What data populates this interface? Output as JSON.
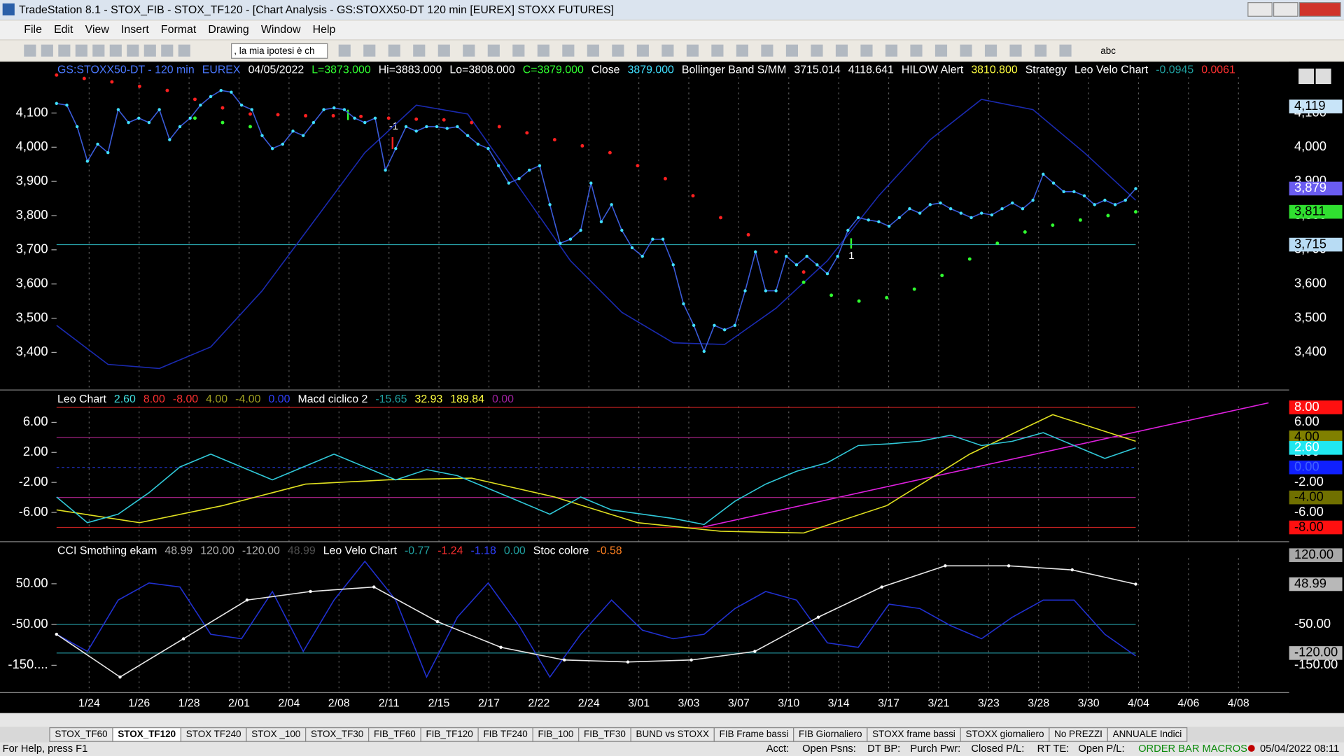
{
  "window": {
    "title": "TradeStation 8.1 - STOX_FIB - STOX_TF120 - [Chart Analysis - GS:STOXX50-DT  120 min  [EUREX] STOXX FUTURES]"
  },
  "menu": [
    "File",
    "Edit",
    "View",
    "Insert",
    "Format",
    "Drawing",
    "Window",
    "Help"
  ],
  "toolbar": {
    "combo": ", la mia ipotesi è ch",
    "text_tool": "abc"
  },
  "time_axis": [
    "1/24",
    "1/26",
    "1/28",
    "2/01",
    "2/04",
    "2/08",
    "2/11",
    "2/15",
    "2/17",
    "2/22",
    "2/24",
    "3/01",
    "3/03",
    "3/07",
    "3/10",
    "3/14",
    "3/17",
    "3/21",
    "3/23",
    "3/28",
    "3/30",
    "4/04",
    "4/06",
    "4/08"
  ],
  "chart_data": [
    {
      "type": "line",
      "header": [
        {
          "text": "GS:STOXX50-DT - 120 min",
          "color": "#4a78ff"
        },
        {
          "text": "EUREX",
          "color": "#4a78ff"
        },
        {
          "text": "04/05/2022",
          "color": "#ffffff"
        },
        {
          "text": "L=3873.000",
          "color": "#30ff30"
        },
        {
          "text": "Hi=3883.000",
          "color": "#ffffff"
        },
        {
          "text": "Lo=3808.000",
          "color": "#ffffff"
        },
        {
          "text": "C=3879.000",
          "color": "#30ff30"
        },
        {
          "text": "Close",
          "color": "#ffffff"
        },
        {
          "text": "3879.000",
          "color": "#40e0ff"
        },
        {
          "text": "Bollinger Band S/MM",
          "color": "#ffffff"
        },
        {
          "text": "3715.014",
          "color": "#ffffff"
        },
        {
          "text": "4118.641",
          "color": "#ffffff"
        },
        {
          "text": "HILOW Alert",
          "color": "#ffffff"
        },
        {
          "text": "3810.800",
          "color": "#ffff40"
        },
        {
          "text": "Strategy",
          "color": "#ffffff"
        },
        {
          "text": "Leo Velo Chart",
          "color": "#ffffff"
        },
        {
          "text": "-0.0945",
          "color": "#20a0a0"
        },
        {
          "text": "0.0061",
          "color": "#ff3030"
        }
      ],
      "ylim": [
        3290,
        4250
      ],
      "yticks": [
        {
          "value": 3400,
          "label": "3,400"
        },
        {
          "value": 3500,
          "label": "3,500"
        },
        {
          "value": 3600,
          "label": "3,600"
        },
        {
          "value": 3700,
          "label": "3,700"
        },
        {
          "value": 3800,
          "label": "3,800"
        },
        {
          "value": 3900,
          "label": "3,900"
        },
        {
          "value": 4000,
          "label": "4,000"
        },
        {
          "value": 4100,
          "label": "4,100"
        }
      ],
      "hlines": [
        {
          "value": 3715,
          "color": "#2aa8b0"
        }
      ],
      "series": [
        {
          "style": "line",
          "color": "#1a2ab0",
          "values": [
            3479,
            3365,
            3353,
            3416,
            3580,
            3782,
            3984,
            4123,
            4097,
            3883,
            3668,
            3517,
            3428,
            3423,
            3529,
            3668,
            3858,
            4022,
            4140,
            4110,
            3984,
            3845
          ]
        },
        {
          "style": "dots",
          "color": "#ff2020",
          "values": [
            4211,
            4201,
            4191,
            4178,
            4166,
            4140,
            4115,
            4097,
            4095,
            4092,
            4092,
            4090,
            4085,
            4082,
            4080,
            4072,
            4060,
            4042,
            4022,
            4004,
            3984,
            3946,
            3908,
            3858,
            3794,
            3744,
            3694,
            3635,
            null,
            null,
            null,
            null,
            null,
            null,
            null,
            null,
            null,
            null,
            null,
            null
          ]
        },
        {
          "style": "dots",
          "color": "#30ff30",
          "values": [
            null,
            null,
            null,
            null,
            null,
            4085,
            4072,
            4060,
            null,
            null,
            null,
            null,
            null,
            null,
            null,
            null,
            null,
            null,
            null,
            null,
            null,
            null,
            null,
            null,
            null,
            null,
            null,
            3605,
            3567,
            3550,
            3560,
            3585,
            3625,
            3673,
            3719,
            3752,
            3772,
            3787,
            3800,
            3811
          ]
        },
        {
          "style": "line_dots",
          "color": "#3a5bd9",
          "dot_color": "#40e0ff",
          "values": [
            4128,
            4123,
            4060,
            3959,
            4009,
            3984,
            4110,
            4072,
            4085,
            4072,
            4110,
            4022,
            4060,
            4085,
            4123,
            4148,
            4166,
            4161,
            4123,
            4110,
            4034,
            3996,
            4009,
            4047,
            4034,
            4072,
            4110,
            4115,
            4110,
            4085,
            4072,
            4085,
            3933,
            3996,
            4060,
            4047,
            4060,
            4060,
            4055,
            4060,
            4034,
            4009,
            3996,
            3946,
            3895,
            3908,
            3933,
            3946,
            3832,
            3719,
            3731,
            3757,
            3895,
            3782,
            3832,
            3757,
            3706,
            3681,
            3731,
            3731,
            3656,
            3542,
            3479,
            3403,
            3479,
            3466,
            3479,
            3580,
            3694,
            3580,
            3580,
            3681,
            3656,
            3681,
            3656,
            3630,
            3681,
            3757,
            3794,
            3787,
            3782,
            3769,
            3794,
            3820,
            3807,
            3832,
            3837,
            3820,
            3807,
            3794,
            3807,
            3802,
            3820,
            3837,
            3820,
            3845,
            3921,
            3895,
            3870,
            3870,
            3858,
            3832,
            3845,
            3832,
            3845,
            3879
          ]
        }
      ],
      "markers": [
        {
          "value": 4119,
          "label": "4,119",
          "color": "#c8e4f8",
          "text_color": "#000000"
        },
        {
          "value": 3879,
          "label": "3,879",
          "color": "#6a5cf0",
          "text_color": "#ffffff"
        },
        {
          "value": 3811,
          "label": "3,811",
          "color": "#30e030",
          "text_color": "#000000"
        },
        {
          "value": 3715,
          "label": "3,715",
          "color": "#b8dcf4",
          "text_color": "#000000"
        }
      ],
      "annotations": [
        "-1",
        "1"
      ]
    },
    {
      "type": "line",
      "header": [
        {
          "text": "Leo Chart",
          "color": "#ffffff"
        },
        {
          "text": "2.60",
          "color": "#40e0e0"
        },
        {
          "text": "8.00",
          "color": "#ff3030"
        },
        {
          "text": "-8.00",
          "color": "#ff3030"
        },
        {
          "text": "4.00",
          "color": "#a0a020"
        },
        {
          "text": "-4.00",
          "color": "#a0a020"
        },
        {
          "text": "0.00",
          "color": "#3040ff"
        },
        {
          "text": "Macd ciclico 2",
          "color": "#ffffff"
        },
        {
          "text": "-15.65",
          "color": "#20a0a0"
        },
        {
          "text": "32.93",
          "color": "#ffff40"
        },
        {
          "text": "189.84",
          "color": "#ffff40"
        },
        {
          "text": "0.00",
          "color": "#a020a0"
        }
      ],
      "ylim": [
        -9.9,
        10.2
      ],
      "yticks": [
        {
          "value": -6,
          "label": "-6.00"
        },
        {
          "value": -2,
          "label": "-2.00"
        },
        {
          "value": 2,
          "label": "2.00"
        },
        {
          "value": 6,
          "label": "6.00"
        }
      ],
      "hlines": [
        {
          "value": 8,
          "color": "#c02020"
        },
        {
          "value": 4,
          "color": "#a02080"
        },
        {
          "value": 0,
          "color": "#2030c0"
        },
        {
          "value": -4,
          "color": "#a02080"
        },
        {
          "value": -8,
          "color": "#c02020"
        }
      ],
      "series": [
        {
          "style": "line",
          "color": "#e0e020",
          "values": [
            -5.66,
            -7.37,
            -5.09,
            -2.23,
            -1.66,
            -1.43,
            -3.94,
            -7.37,
            -8.51,
            -8.74,
            -5.09,
            1.77,
            7.03,
            3.49
          ]
        },
        {
          "style": "line",
          "color": "#30c8d8",
          "values": [
            -3.94,
            -7.37,
            -6.23,
            -3.37,
            0.06,
            1.77,
            0.06,
            -1.66,
            0.06,
            1.77,
            0.06,
            -1.66,
            -0.29,
            -1.09,
            -2.8,
            -4.51,
            -6.23,
            -3.94,
            -5.66,
            -6.23,
            -6.8,
            -7.6,
            -4.51,
            -2.23,
            -0.51,
            0.63,
            2.91,
            3.14,
            3.49,
            4.29,
            2.91,
            3.49,
            4.63,
            2.91,
            1.2,
            2.6
          ]
        }
      ],
      "markers": [
        {
          "value": 8,
          "label": "8.00",
          "color": "#ff1010",
          "text_color": "#ffffff"
        },
        {
          "value": 4,
          "label": "4.00",
          "color": "#808000",
          "text_color": "#000000"
        },
        {
          "value": 2.6,
          "label": "2.60",
          "color": "#20e8f0",
          "text_color": "#ffffff"
        },
        {
          "value": 0,
          "label": "0.00",
          "color": "#1020ff",
          "text_color": "#4060ff"
        },
        {
          "value": -4,
          "label": "-4.00",
          "color": "#707000",
          "text_color": "#000000"
        },
        {
          "value": -8,
          "label": "-8.00",
          "color": "#ff1010",
          "text_color": "#000000"
        }
      ]
    },
    {
      "type": "line",
      "header": [
        {
          "text": "CCI Smothing ekam",
          "color": "#ffffff"
        },
        {
          "text": "48.99",
          "color": "#b0b0b0"
        },
        {
          "text": "120.00",
          "color": "#b0b0b0"
        },
        {
          "text": "-120.00",
          "color": "#b0b0b0"
        },
        {
          "text": "48.99",
          "color": "#505050"
        },
        {
          "text": "Leo Velo Chart",
          "color": "#ffffff"
        },
        {
          "text": "-0.77",
          "color": "#20a0a0"
        },
        {
          "text": "-1.24",
          "color": "#ff3030"
        },
        {
          "text": "-1.18",
          "color": "#3040ff"
        },
        {
          "text": "0.00",
          "color": "#20a0a0"
        },
        {
          "text": "Stoc colore",
          "color": "#ffffff"
        },
        {
          "text": "-0.58",
          "color": "#ff8020"
        }
      ],
      "ylim": [
        -217,
        151
      ],
      "yticks": [
        {
          "value": -150,
          "label": "-150...."
        },
        {
          "value": -50,
          "label": "-50.00"
        },
        {
          "value": 50,
          "label": "50.00"
        }
      ],
      "right_ticks": [
        {
          "value": -150,
          "label": "-150.00"
        },
        {
          "value": -50,
          "label": "-50.00"
        }
      ],
      "hlines": [
        {
          "value": -50,
          "color": "#208890"
        },
        {
          "value": -120,
          "color": "#208890"
        }
      ],
      "series": [
        {
          "style": "line",
          "color": "#2030d0",
          "values": [
            -74,
            -116,
            10,
            52,
            42,
            -74,
            -85,
            31,
            -116,
            10,
            105,
            10,
            -179,
            -32,
            52,
            -53,
            -179,
            -74,
            10,
            -64,
            -85,
            -74,
            -11,
            31,
            10,
            -95,
            -106,
            0,
            -11,
            -53,
            -85,
            -32,
            10,
            10,
            -74,
            -127
          ]
        },
        {
          "style": "line_dots",
          "color": "#e8e8e8",
          "dot_color": "#ffffff",
          "values": [
            -74,
            -179,
            -85,
            10,
            31,
            42,
            -43,
            -106,
            -137,
            -142,
            -137,
            -116,
            -32,
            42,
            94,
            94,
            84,
            48.99
          ]
        }
      ],
      "markers": [
        {
          "value": 120,
          "label": "120.00",
          "color": "#a8a8a8",
          "text_color": "#000000"
        },
        {
          "value": 48.99,
          "label": "48.99",
          "color": "#b8b8b8",
          "text_color": "#000000"
        },
        {
          "value": -120,
          "label": "-120.00",
          "color": "#b8b8b8",
          "text_color": "#000000"
        }
      ]
    }
  ],
  "tabs": [
    "STOX_TF60",
    "STOX_TF120",
    "STOX TF240",
    "STOX _100",
    "STOX_TF30",
    "FIB_TF60",
    "FIB_TF120",
    "FIB TF240",
    "FIB_100",
    "FIB_TF30",
    "BUND vs STOXX",
    "FIB Frame bassi",
    "FIB Giornaliero",
    "STOXX frame bassi",
    "STOXX giornaliero",
    "No PREZZI",
    "ANNUALE Indici"
  ],
  "status": {
    "help": "For Help, press F1",
    "fields": [
      "Acct:",
      "Open Psns:",
      "DT BP:",
      "Purch Pwr:",
      "Closed P/L:",
      "RT TE:",
      "Open P/L:"
    ],
    "macros": "ORDER BAR MACROS",
    "datetime": "05/04/2022 08:11"
  }
}
